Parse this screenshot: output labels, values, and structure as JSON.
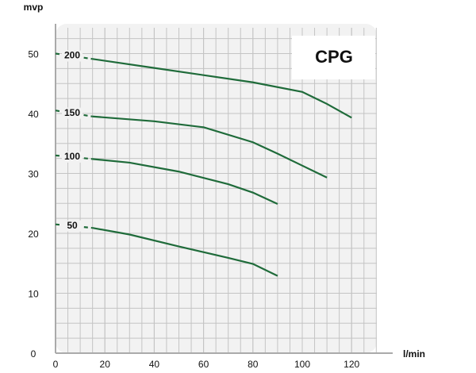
{
  "chart_data": {
    "type": "line",
    "y_label": "mvp",
    "x_label": "l/min",
    "annotation": "CPG",
    "xlim": [
      0,
      135
    ],
    "ylim": [
      0,
      55
    ],
    "xticks": [
      0,
      20,
      40,
      60,
      80,
      100,
      120
    ],
    "yticks": [
      0,
      10,
      20,
      30,
      40,
      50
    ],
    "grid": true,
    "series": [
      {
        "name": "200",
        "color": "#1f6b3a",
        "x": [
          0,
          15,
          40,
          60,
          80,
          100,
          110,
          120
        ],
        "values": [
          50,
          49.1,
          47.6,
          46.4,
          45.2,
          43.6,
          41.6,
          39.3
        ]
      },
      {
        "name": "150",
        "color": "#1f6b3a",
        "x": [
          0,
          15,
          40,
          60,
          80,
          90,
          100,
          110
        ],
        "values": [
          40.5,
          39.5,
          38.7,
          37.7,
          35.2,
          33.3,
          31.3,
          29.3
        ]
      },
      {
        "name": "100",
        "color": "#1f6b3a",
        "x": [
          0,
          15,
          30,
          50,
          70,
          80,
          90
        ],
        "values": [
          33,
          32.4,
          31.8,
          30.3,
          28.2,
          26.8,
          24.9
        ]
      },
      {
        "name": "50",
        "color": "#1f6b3a",
        "x": [
          0,
          15,
          30,
          50,
          70,
          80,
          90
        ],
        "values": [
          21.5,
          20.9,
          19.8,
          17.8,
          15.9,
          14.9,
          12.9
        ]
      }
    ]
  }
}
